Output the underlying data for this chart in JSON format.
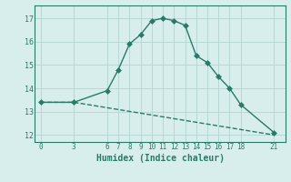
{
  "xlabel": "Humidex (Indice chaleur)",
  "line1_x": [
    0,
    3,
    6,
    7,
    8,
    9,
    10,
    11,
    12,
    13,
    14,
    15,
    16,
    17,
    18,
    21
  ],
  "line1_y": [
    13.4,
    13.4,
    13.9,
    14.8,
    15.9,
    16.3,
    16.9,
    17.0,
    16.9,
    16.7,
    15.4,
    15.1,
    14.5,
    14.0,
    13.3,
    12.1
  ],
  "line2_x": [
    0,
    3,
    21
  ],
  "line2_y": [
    13.4,
    13.4,
    12.0
  ],
  "line_color": "#2a7a6a",
  "bg_color": "#d8eeed",
  "grid_color": "#b8d8d6",
  "xlim": [
    -0.5,
    22
  ],
  "ylim": [
    11.7,
    17.55
  ],
  "xticks": [
    0,
    3,
    6,
    7,
    8,
    9,
    10,
    11,
    12,
    13,
    14,
    15,
    16,
    17,
    18,
    21
  ],
  "yticks": [
    12,
    13,
    14,
    15,
    16,
    17
  ],
  "markersize": 3.0,
  "linewidth": 1.0
}
